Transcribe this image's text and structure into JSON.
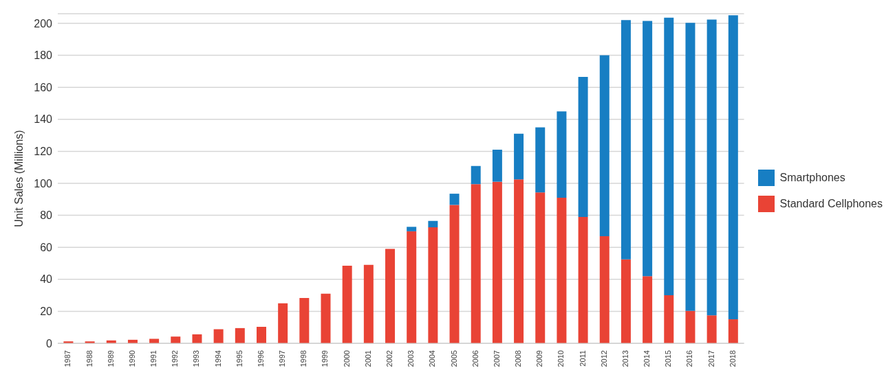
{
  "chart_data": {
    "type": "bar",
    "ylabel": "Unit Sales (Millions)",
    "stacked": true,
    "grid": "y",
    "legend": "right",
    "categories": [
      "1987",
      "1988",
      "1989",
      "1990",
      "1991",
      "1992",
      "1993",
      "1994",
      "1995",
      "1996",
      "1997",
      "1998",
      "1999",
      "2000",
      "2001",
      "2002",
      "2003",
      "2004",
      "2005",
      "2006",
      "2007",
      "2008",
      "2009",
      "2010",
      "2011",
      "2012",
      "2013",
      "2014",
      "2015",
      "2016",
      "2017",
      "2018"
    ],
    "series": [
      {
        "name": "Standard Cellphones",
        "color": "#e94335",
        "values": [
          1.2,
          1.2,
          1.8,
          2.2,
          2.8,
          4.2,
          5.6,
          8.8,
          9.5,
          10.3,
          25,
          28.3,
          31,
          48.5,
          49,
          59,
          70,
          72.5,
          86.5,
          99.5,
          101,
          102.5,
          94.3,
          91,
          79,
          67,
          52.5,
          42,
          30,
          20.3,
          17.5,
          15
        ]
      },
      {
        "name": "Smartphones",
        "color": "#177ec3",
        "values": [
          null,
          null,
          null,
          null,
          null,
          null,
          null,
          null,
          null,
          null,
          null,
          null,
          null,
          null,
          null,
          null,
          2.8,
          4,
          7,
          11.3,
          20,
          28.5,
          40.7,
          54,
          87.5,
          113,
          149.5,
          159.5,
          173.5,
          180,
          184.8,
          190
        ]
      }
    ],
    "ylim": [
      0,
      206
    ],
    "yticks": [
      0,
      20,
      40,
      60,
      80,
      100,
      120,
      140,
      160,
      180,
      200
    ]
  }
}
